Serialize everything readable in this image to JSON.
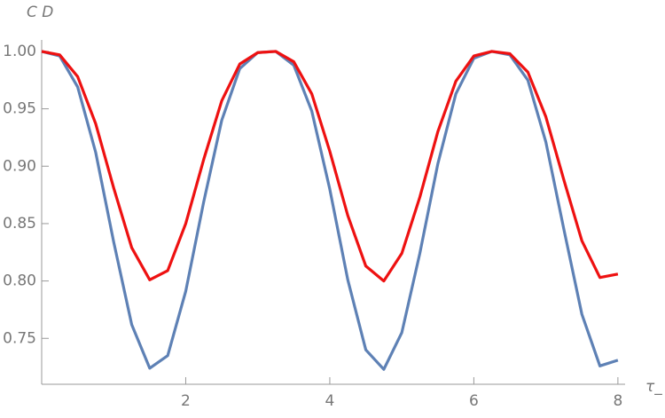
{
  "chart_data": {
    "type": "line",
    "y_label": "C D",
    "x_label": "τ_",
    "x": [
      0,
      0.25,
      0.5,
      0.75,
      1,
      1.25,
      1.5,
      1.75,
      2,
      2.25,
      2.5,
      2.75,
      3,
      3.25,
      3.5,
      3.75,
      4,
      4.25,
      4.5,
      4.75,
      5,
      5.25,
      5.5,
      5.75,
      6,
      6.25,
      6.5,
      6.75,
      7,
      7.25,
      7.5,
      7.75,
      8
    ],
    "series": [
      {
        "color": "#5e81b5",
        "values": [
          1,
          0.996,
          0.969,
          0.912,
          0.834,
          0.762,
          0.724,
          0.735,
          0.791,
          0.869,
          0.94,
          0.985,
          0.999,
          1.0,
          0.988,
          0.948,
          0.88,
          0.801,
          0.74,
          0.723,
          0.755,
          0.824,
          0.902,
          0.963,
          0.994,
          1.0,
          0.997,
          0.975,
          0.921,
          0.845,
          0.771,
          0.726,
          0.731
        ]
      },
      {
        "color": "#ee1111",
        "values": [
          1,
          0.997,
          0.978,
          0.937,
          0.881,
          0.829,
          0.801,
          0.809,
          0.85,
          0.906,
          0.957,
          0.989,
          0.999,
          1.0,
          0.991,
          0.963,
          0.913,
          0.857,
          0.813,
          0.8,
          0.824,
          0.873,
          0.93,
          0.974,
          0.996,
          1.0,
          0.998,
          0.982,
          0.943,
          0.888,
          0.835,
          0.803,
          0.806
        ]
      }
    ],
    "xlim": [
      0,
      8.1
    ],
    "xticks": [
      2,
      4,
      6,
      8
    ],
    "ylim": [
      0.71,
      1.01
    ],
    "yticks": [
      {
        "value": 1.0,
        "label": "1.00"
      },
      0.95,
      {
        "value": 0.9,
        "label": "0.90"
      },
      0.85,
      {
        "value": 0.8,
        "label": "0.80"
      },
      0.75
    ],
    "grid": false
  }
}
